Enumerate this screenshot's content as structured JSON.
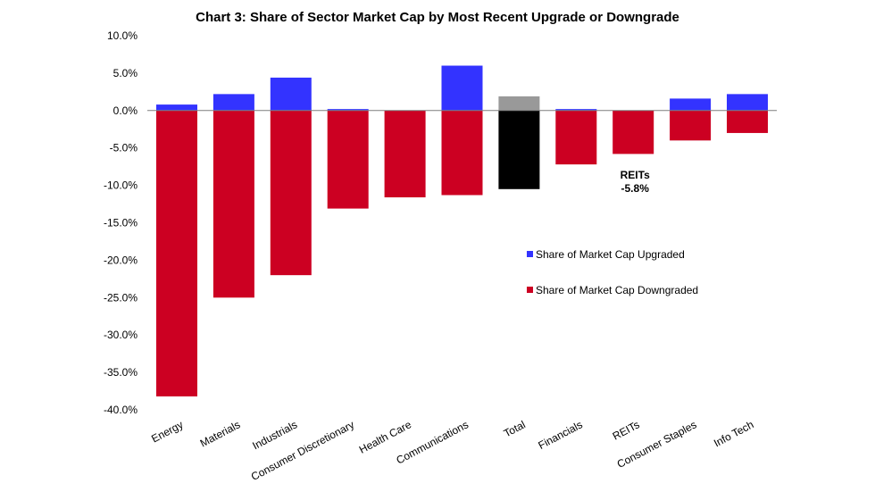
{
  "chart_data": {
    "type": "bar",
    "title": "Chart 3: Share of Sector Market Cap by Most Recent Upgrade or Downgrade",
    "categories": [
      "Energy",
      "Materials",
      "Industrials",
      "Consumer Discretionary",
      "Health Care",
      "Communications",
      "Total",
      "Financials",
      "REITs",
      "Consumer Staples",
      "Info Tech"
    ],
    "series": [
      {
        "name": "Share of Market Cap Upgraded",
        "color": "#3333ff",
        "values": [
          0.8,
          2.2,
          4.4,
          0.2,
          0.0,
          6.0,
          1.9,
          0.2,
          0.0,
          1.6,
          2.2
        ]
      },
      {
        "name": "Share of Market Cap Downgraded",
        "color": "#cc0022",
        "values": [
          -38.2,
          -25.0,
          -22.0,
          -13.1,
          -11.6,
          -11.3,
          -10.5,
          -7.2,
          -5.8,
          -4.0,
          -3.0
        ]
      }
    ],
    "total_colors": {
      "category": "Total",
      "upgraded": "#999999",
      "downgraded": "#000000"
    },
    "yticks": [
      "10.0%",
      "5.0%",
      "0.0%",
      "-5.0%",
      "-10.0%",
      "-15.0%",
      "-20.0%",
      "-25.0%",
      "-30.0%",
      "-35.0%",
      "-40.0%"
    ],
    "ylim": [
      -40,
      10
    ],
    "annotation": {
      "category": "REITs",
      "line1": "REITs",
      "line2": "-5.8%"
    },
    "legend_placement": "right-middle",
    "grid": false,
    "xlabel": "",
    "ylabel": ""
  }
}
